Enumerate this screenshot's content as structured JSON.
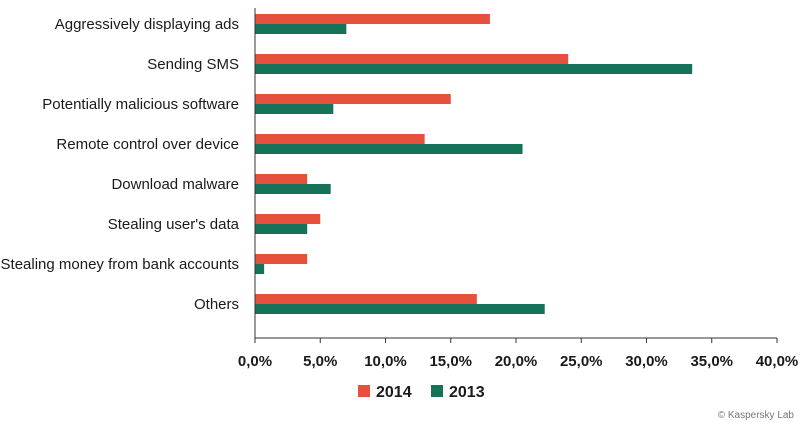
{
  "chart_data": {
    "type": "bar",
    "orientation": "horizontal",
    "categories": [
      "Aggressively displaying ads",
      "Sending SMS",
      "Potentially malicious software",
      "Remote control over device",
      "Download malware",
      "Stealing user's data",
      "Stealing money from bank accounts",
      "Others"
    ],
    "series": [
      {
        "name": "2014",
        "color": "#e8503e",
        "values": [
          18.0,
          24.0,
          15.0,
          13.0,
          4.0,
          5.0,
          4.0,
          17.0
        ]
      },
      {
        "name": "2013",
        "color": "#157359",
        "values": [
          7.0,
          33.5,
          6.0,
          20.5,
          5.8,
          4.0,
          0.7,
          22.2
        ]
      }
    ],
    "xlim": [
      0,
      40
    ],
    "xticks": [
      "0,0%",
      "5,0%",
      "10,0%",
      "15,0%",
      "20,0%",
      "25,0%",
      "30,0%",
      "35,0%",
      "40,0%"
    ],
    "grid": false,
    "legend_position": "bottom"
  },
  "credit": "© Kaspersky Lab"
}
